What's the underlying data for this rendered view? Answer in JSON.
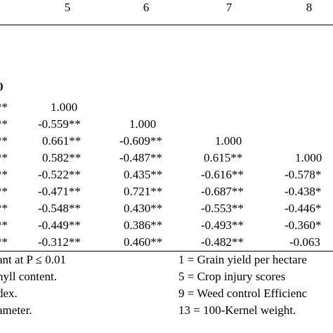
{
  "table": {
    "column_headers": [
      "5",
      "6",
      "7",
      "8"
    ],
    "row_label_fragment": "0",
    "row_stub_fragments": [
      "**",
      "**",
      "**",
      "**",
      "**",
      "**",
      "**",
      "**",
      "**"
    ],
    "rows": [
      [
        "1.000",
        "",
        "",
        ""
      ],
      [
        "-0.559**",
        "1.000",
        "",
        ""
      ],
      [
        "0.661**",
        "-0.609**",
        "1.000",
        ""
      ],
      [
        "0.582**",
        "-0.487**",
        "0.615**",
        "1.000"
      ],
      [
        "-0.522**",
        "0.435**",
        "-0.616**",
        "-0.578*"
      ],
      [
        "-0.471**",
        "0.721**",
        "-0.687**",
        "-0.438*"
      ],
      [
        "-0.548**",
        "0.430**",
        "-0.553**",
        "-0.446*"
      ],
      [
        "-0.449**",
        "0.386**",
        "-0.493**",
        "-0.360*"
      ],
      [
        "-0.312**",
        "0.460**",
        "-0.482**",
        "-0.063"
      ]
    ]
  },
  "footnotes": {
    "left": [
      "ant at P ≤ 0.01",
      "nyll content.",
      "dex.",
      "ameter."
    ],
    "right": [
      "1 = Grain yield per hectare",
      "5 = Crop injury scores",
      "9 = Weed control Efficienc",
      "13 = 100-Kernel weight."
    ]
  }
}
